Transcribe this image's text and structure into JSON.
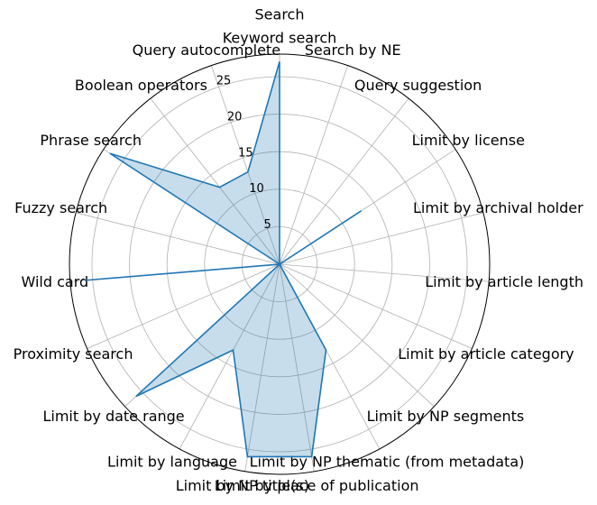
{
  "chart_data": {
    "type": "radar",
    "title": "Search",
    "categories": [
      "Keyword search",
      "Search by NE",
      "Query suggestion",
      "Limit by license",
      "Limit by archival holder",
      "Limit by article length",
      "Limit by article category",
      "Limit by NP segments",
      "Limit by NP thematic (from metadata)",
      "Limit by place of publication",
      "Limit by NP title(s)",
      "Limit by language",
      "Limit by date range",
      "Proximity search",
      "Wild card",
      "Fuzzy search",
      "Phrase search",
      "Boolean operators",
      "Query autocomplete"
    ],
    "values": [
      27,
      0,
      0,
      13,
      0,
      0,
      0,
      0,
      13,
      26,
      26,
      13,
      26,
      0,
      26,
      0,
      27,
      13,
      13
    ],
    "color": "#1f77b4",
    "ylim": [
      0,
      28
    ],
    "yticks": [
      5,
      10,
      15,
      20,
      25
    ],
    "grid": true
  }
}
